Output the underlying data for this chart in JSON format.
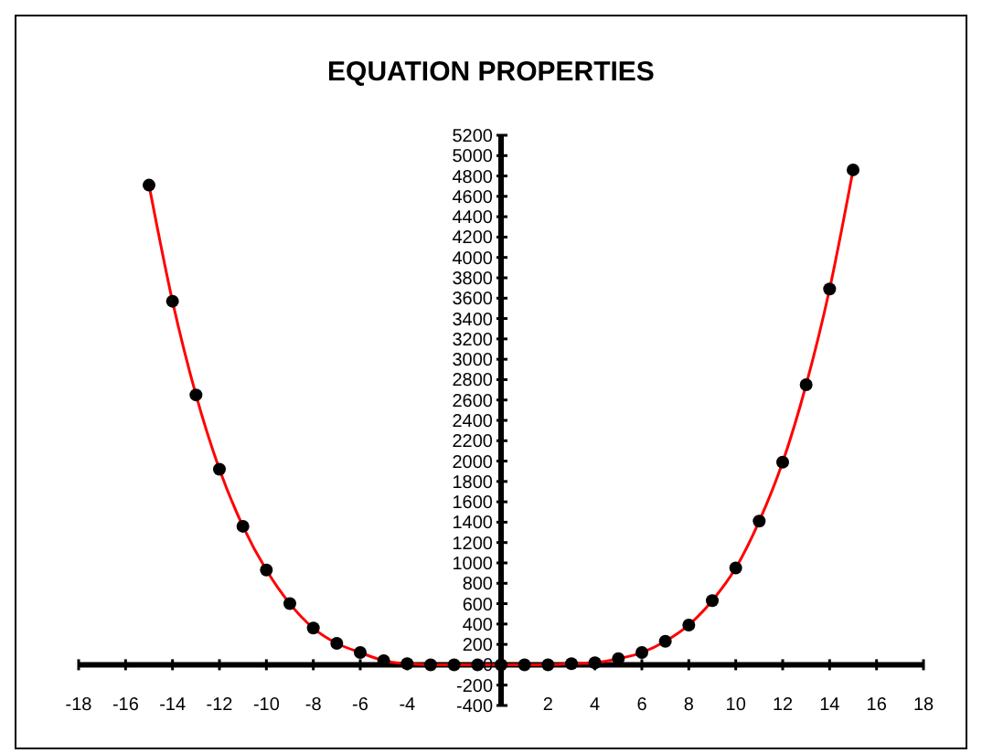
{
  "chart_data": {
    "type": "line",
    "title": "EQUATION PROPERTIES",
    "x": [
      -15,
      -14,
      -13,
      -12,
      -11,
      -10,
      -9,
      -8,
      -7,
      -6,
      -5,
      -4,
      -3,
      -2,
      -1,
      0,
      1,
      2,
      3,
      4,
      5,
      6,
      7,
      8,
      9,
      10,
      11,
      12,
      13,
      14,
      15
    ],
    "series": [
      {
        "color": "#ff0000",
        "values": [
          4710,
          3570,
          2650,
          1920,
          1360,
          930,
          600,
          360,
          210,
          120,
          40,
          10,
          0,
          0,
          0,
          0,
          0,
          0,
          10,
          20,
          60,
          120,
          230,
          390,
          630,
          950,
          1410,
          1990,
          2750,
          3690,
          4860
        ]
      }
    ],
    "xlim": [
      -18,
      18
    ],
    "xticks": [
      -18,
      -16,
      -14,
      -12,
      -10,
      -8,
      -6,
      -4,
      {
        "value": -2,
        "label": null
      },
      {
        "value": 0,
        "label": null
      },
      2,
      4,
      6,
      8,
      10,
      12,
      14,
      16,
      18
    ],
    "ylim": [
      -400,
      5200
    ],
    "yticks": [
      -400,
      -200,
      0,
      200,
      400,
      600,
      800,
      1000,
      1200,
      1400,
      1600,
      1800,
      2000,
      2200,
      2400,
      2600,
      2800,
      3000,
      3200,
      3400,
      3600,
      3800,
      4000,
      4200,
      4400,
      4600,
      4800,
      5000,
      5200
    ],
    "grid": false,
    "legend": false,
    "marker": "circle",
    "line_style": "solid"
  }
}
